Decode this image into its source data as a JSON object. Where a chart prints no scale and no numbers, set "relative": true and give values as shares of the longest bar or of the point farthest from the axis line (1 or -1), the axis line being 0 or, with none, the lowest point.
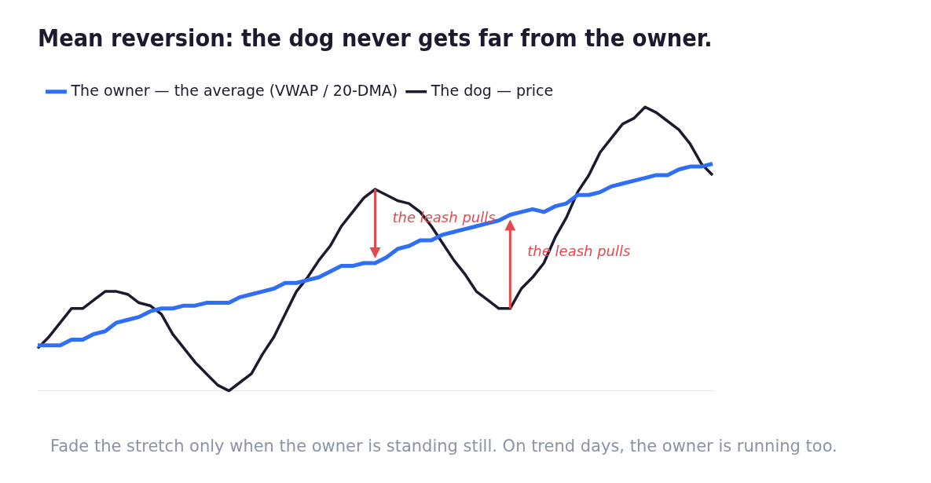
{
  "chart_data": {
    "type": "line",
    "relative": true,
    "title": "Mean reversion: the dog never gets far from the owner.",
    "legend": "top left",
    "grid": false,
    "marker": "none",
    "categories": [
      null,
      null,
      null,
      null,
      null,
      null,
      null,
      null,
      null,
      null,
      null,
      null,
      null,
      null,
      null,
      null,
      null,
      null,
      null,
      null,
      null,
      null,
      null,
      null,
      null,
      null,
      null,
      null,
      null,
      null,
      null,
      null,
      null,
      null,
      null,
      null,
      null,
      null,
      null,
      null,
      null,
      null,
      null,
      null,
      null,
      null,
      null,
      null,
      null,
      null,
      null,
      null,
      null,
      null,
      null,
      null,
      null,
      null,
      null,
      null,
      null
    ],
    "series": [
      {
        "name": "The owner — the average (VWAP / 20-DMA)",
        "color": "#2f6ff5",
        "values": [
          0.16,
          0.16,
          0.16,
          0.18,
          0.18,
          0.2,
          0.21,
          0.24,
          0.25,
          0.26,
          0.28,
          0.29,
          0.29,
          0.3,
          0.3,
          0.31,
          0.31,
          0.31,
          0.33,
          0.34,
          0.35,
          0.36,
          0.38,
          0.38,
          0.39,
          0.4,
          0.42,
          0.44,
          0.44,
          0.45,
          0.45,
          0.47,
          0.5,
          0.51,
          0.53,
          0.53,
          0.55,
          0.56,
          0.57,
          0.58,
          0.59,
          0.6,
          0.62,
          0.63,
          0.64,
          0.63,
          0.65,
          0.66,
          0.69,
          0.69,
          0.7,
          0.72,
          0.73,
          0.74,
          0.75,
          0.76,
          0.76,
          0.78,
          0.79,
          0.79,
          0.8
        ]
      },
      {
        "name": "The dog — price",
        "color": "#1b1a2e",
        "values": [
          0.15,
          0.19,
          0.24,
          0.29,
          0.29,
          0.32,
          0.35,
          0.35,
          0.34,
          0.31,
          0.3,
          0.27,
          0.2,
          0.15,
          0.1,
          0.06,
          0.02,
          0,
          0.03,
          0.06,
          0.13,
          0.19,
          0.27,
          0.35,
          0.4,
          0.46,
          0.51,
          0.58,
          0.63,
          0.68,
          0.71,
          0.69,
          0.67,
          0.66,
          0.63,
          0.58,
          0.52,
          0.46,
          0.41,
          0.35,
          0.32,
          0.29,
          0.29,
          0.36,
          0.4,
          0.45,
          0.54,
          0.61,
          0.7,
          0.76,
          0.84,
          0.89,
          0.94,
          0.96,
          1,
          0.98,
          0.95,
          0.92,
          0.87,
          0.8,
          0.76
        ]
      }
    ],
    "annotations": [
      "the leash pulls",
      "the leash pulls",
      "Fade the stretch only when the owner is standing still. On trend days, the owner is running too."
    ]
  }
}
